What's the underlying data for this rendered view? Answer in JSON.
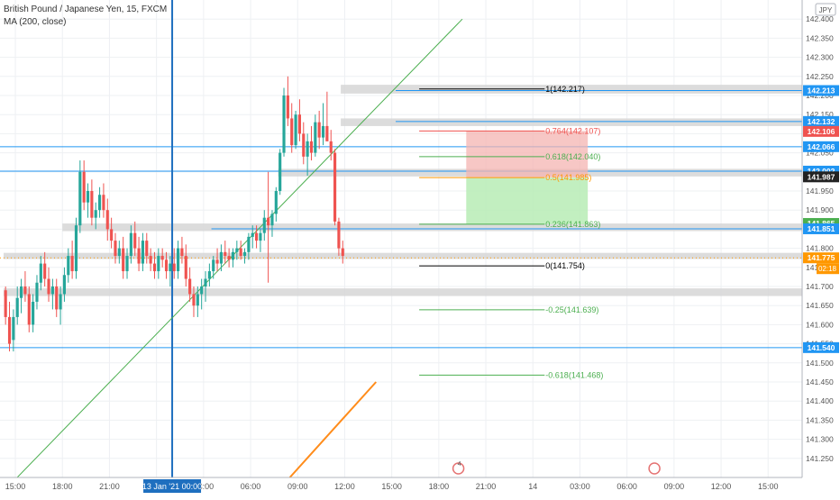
{
  "chart_data": {
    "type": "candlestick",
    "symbol_title": "British Pound / Japanese Yen, 15, FXCM",
    "indicator_label": "MA (200, close)",
    "currency_badge": "JPY",
    "ylim": [
      141.2,
      142.45
    ],
    "y_ticks": [
      {
        "label": "142.400",
        "v": 142.4
      },
      {
        "label": "142.350",
        "v": 142.35
      },
      {
        "label": "142.300",
        "v": 142.3
      },
      {
        "label": "142.250",
        "v": 142.25
      },
      {
        "label": "142.200",
        "v": 142.2
      },
      {
        "label": "142.150",
        "v": 142.15
      },
      {
        "label": "142.100",
        "v": 142.1
      },
      {
        "label": "142.050",
        "v": 142.05
      },
      {
        "label": "142.000",
        "v": 142.0
      },
      {
        "label": "141.950",
        "v": 141.95
      },
      {
        "label": "141.900",
        "v": 141.9
      },
      {
        "label": "141.850",
        "v": 141.85
      },
      {
        "label": "141.800",
        "v": 141.8
      },
      {
        "label": "141.750",
        "v": 141.75
      },
      {
        "label": "141.700",
        "v": 141.7
      },
      {
        "label": "141.650",
        "v": 141.65
      },
      {
        "label": "141.600",
        "v": 141.6
      },
      {
        "label": "141.550",
        "v": 141.55
      },
      {
        "label": "141.500",
        "v": 141.5
      },
      {
        "label": "141.450",
        "v": 141.45
      },
      {
        "label": "141.400",
        "v": 141.4
      },
      {
        "label": "141.350",
        "v": 141.35
      },
      {
        "label": "141.300",
        "v": 141.3
      },
      {
        "label": "141.250",
        "v": 141.25
      }
    ],
    "x_ticks": [
      {
        "label": "15:00",
        "bar": 3
      },
      {
        "label": "18:00",
        "bar": 15
      },
      {
        "label": "21:00",
        "bar": 27
      },
      {
        "label": "00:00",
        "bar": 39
      },
      {
        "label": "03:00",
        "bar": 51
      },
      {
        "label": "06:00",
        "bar": 63
      },
      {
        "label": "09:00",
        "bar": 75
      },
      {
        "label": "12:00",
        "bar": 87
      },
      {
        "label": "15:00",
        "bar": 99
      },
      {
        "label": "18:00",
        "bar": 111
      },
      {
        "label": "21:00",
        "bar": 123
      },
      {
        "label": "14",
        "bar": 135
      },
      {
        "label": "03:00",
        "bar": 147
      },
      {
        "label": "06:00",
        "bar": 159
      },
      {
        "label": "09:00",
        "bar": 171
      },
      {
        "label": "12:00",
        "bar": 183
      },
      {
        "label": "15:00",
        "bar": 195
      }
    ],
    "crosshair": {
      "date_label": "13 Jan '21",
      "bar": 43
    },
    "bars": [
      [
        141.69,
        141.7,
        141.6,
        141.62
      ],
      [
        141.62,
        141.66,
        141.53,
        141.55
      ],
      [
        141.56,
        141.64,
        141.53,
        141.62
      ],
      [
        141.62,
        141.7,
        141.6,
        141.67
      ],
      [
        141.67,
        141.72,
        141.63,
        141.7
      ],
      [
        141.7,
        141.74,
        141.66,
        141.68
      ],
      [
        141.68,
        141.7,
        141.58,
        141.6
      ],
      [
        141.6,
        141.68,
        141.58,
        141.66
      ],
      [
        141.66,
        141.73,
        141.64,
        141.71
      ],
      [
        141.71,
        141.78,
        141.69,
        141.76
      ],
      [
        141.76,
        141.79,
        141.7,
        141.72
      ],
      [
        141.72,
        141.75,
        141.66,
        141.68
      ],
      [
        141.68,
        141.72,
        141.64,
        141.7
      ],
      [
        141.7,
        141.72,
        141.62,
        141.64
      ],
      [
        141.64,
        141.7,
        141.6,
        141.68
      ],
      [
        141.68,
        141.75,
        141.66,
        141.73
      ],
      [
        141.73,
        141.8,
        141.71,
        141.78
      ],
      [
        141.78,
        141.82,
        141.72,
        141.74
      ],
      [
        141.74,
        141.88,
        141.72,
        141.86
      ],
      [
        141.86,
        142.03,
        141.84,
        142.0
      ],
      [
        142.0,
        142.03,
        141.9,
        141.92
      ],
      [
        141.92,
        141.97,
        141.88,
        141.95
      ],
      [
        141.95,
        141.98,
        141.86,
        141.88
      ],
      [
        141.88,
        141.92,
        141.85,
        141.9
      ],
      [
        141.9,
        141.96,
        141.88,
        141.94
      ],
      [
        141.94,
        141.97,
        141.88,
        141.9
      ],
      [
        141.9,
        141.93,
        141.82,
        141.85
      ],
      [
        141.85,
        141.88,
        141.8,
        141.82
      ],
      [
        141.82,
        141.84,
        141.76,
        141.78
      ],
      [
        141.78,
        141.82,
        141.76,
        141.8
      ],
      [
        141.8,
        141.83,
        141.72,
        141.74
      ],
      [
        141.74,
        141.8,
        141.72,
        141.78
      ],
      [
        141.78,
        141.86,
        141.76,
        141.84
      ],
      [
        141.84,
        141.87,
        141.78,
        141.8
      ],
      [
        141.8,
        141.83,
        141.74,
        141.76
      ],
      [
        141.76,
        141.84,
        141.74,
        141.82
      ],
      [
        141.82,
        141.84,
        141.76,
        141.78
      ],
      [
        141.78,
        141.8,
        141.74,
        141.76
      ],
      [
        141.76,
        141.79,
        141.72,
        141.74
      ],
      [
        141.74,
        141.8,
        141.72,
        141.78
      ],
      [
        141.78,
        141.8,
        141.75,
        141.77
      ],
      [
        141.77,
        141.79,
        141.72,
        141.74
      ],
      [
        141.74,
        141.78,
        141.7,
        141.76
      ],
      [
        141.76,
        141.8,
        141.72,
        141.74
      ],
      [
        141.74,
        141.82,
        141.72,
        141.8
      ],
      [
        141.8,
        141.83,
        141.76,
        141.78
      ],
      [
        141.78,
        141.81,
        141.7,
        141.72
      ],
      [
        141.72,
        141.75,
        141.66,
        141.68
      ],
      [
        141.68,
        141.7,
        141.62,
        141.65
      ],
      [
        141.65,
        141.7,
        141.62,
        141.68
      ],
      [
        141.68,
        141.72,
        141.64,
        141.7
      ],
      [
        141.7,
        141.74,
        141.66,
        141.72
      ],
      [
        141.72,
        141.76,
        141.7,
        141.74
      ],
      [
        141.74,
        141.78,
        141.72,
        141.77
      ],
      [
        141.77,
        141.8,
        141.74,
        141.76
      ],
      [
        141.76,
        141.81,
        141.74,
        141.79
      ],
      [
        141.79,
        141.82,
        141.76,
        141.78
      ],
      [
        141.78,
        141.8,
        141.75,
        141.77
      ],
      [
        141.77,
        141.8,
        141.75,
        141.79
      ],
      [
        141.79,
        141.82,
        141.77,
        141.8
      ],
      [
        141.8,
        141.82,
        141.77,
        141.78
      ],
      [
        141.78,
        141.8,
        141.76,
        141.79
      ],
      [
        141.79,
        141.84,
        141.77,
        141.83
      ],
      [
        141.83,
        141.86,
        141.8,
        141.84
      ],
      [
        141.84,
        141.86,
        141.8,
        141.82
      ],
      [
        141.82,
        141.85,
        141.79,
        141.84
      ],
      [
        141.84,
        141.9,
        141.82,
        141.88
      ],
      [
        141.88,
        142.0,
        141.71,
        141.86
      ],
      [
        141.86,
        141.9,
        141.83,
        141.89
      ],
      [
        141.89,
        141.96,
        141.87,
        141.95
      ],
      [
        141.95,
        142.06,
        141.94,
        142.05
      ],
      [
        142.05,
        142.22,
        142.04,
        142.2
      ],
      [
        142.2,
        142.25,
        142.12,
        142.14
      ],
      [
        142.14,
        142.18,
        142.05,
        142.07
      ],
      [
        142.07,
        142.16,
        142.06,
        142.15
      ],
      [
        142.15,
        142.19,
        142.08,
        142.1
      ],
      [
        142.1,
        142.13,
        142.02,
        142.04
      ],
      [
        142.04,
        142.1,
        141.99,
        142.08
      ],
      [
        142.08,
        142.12,
        142.03,
        142.05
      ],
      [
        142.05,
        142.15,
        142.04,
        142.13
      ],
      [
        142.13,
        142.16,
        142.06,
        142.09
      ],
      [
        142.09,
        142.18,
        142.07,
        142.12
      ],
      [
        142.12,
        142.21,
        142.1,
        142.08
      ],
      [
        142.08,
        142.11,
        142.03,
        142.05
      ],
      [
        142.05,
        142.06,
        141.86,
        141.87
      ],
      [
        141.87,
        141.88,
        141.78,
        141.8
      ],
      [
        141.8,
        141.82,
        141.76,
        141.78
      ]
    ],
    "horizontal_levels": [
      {
        "value": 142.213,
        "label": "142.213",
        "color": "#2196f3"
      },
      {
        "value": 142.132,
        "label": "142.132",
        "color": "#2196f3"
      },
      {
        "value": 142.106,
        "label": "142.106",
        "color": "#ef5350"
      },
      {
        "value": 142.066,
        "label": "142.066",
        "color": "#2196f3"
      },
      {
        "value": 142.002,
        "label": "142.002",
        "color": "#2196f3"
      },
      {
        "value": 141.987,
        "label": "141.987",
        "color": "#222222"
      },
      {
        "value": 141.865,
        "label": "141.865",
        "color": "#4caf50"
      },
      {
        "value": 141.851,
        "label": "141.851",
        "color": "#2196f3"
      },
      {
        "value": 141.775,
        "label": "141.775",
        "color": "#ff9800"
      },
      {
        "value": 141.54,
        "label": "141.540",
        "color": "#2196f3"
      }
    ],
    "countdown": "02:18",
    "zones": [
      {
        "from": 142.205,
        "to": 142.228
      },
      {
        "from": 142.12,
        "to": 142.14
      },
      {
        "from": 141.988,
        "to": 142.008
      },
      {
        "from": 141.845,
        "to": 141.865
      },
      {
        "from": 141.772,
        "to": 141.788
      },
      {
        "from": 141.675,
        "to": 141.695
      }
    ],
    "fibonacci": [
      {
        "level": "1",
        "value": 142.217,
        "label": "1(142.217)",
        "color": "#000000"
      },
      {
        "level": "0.764",
        "value": 142.107,
        "label": "0.764(142.107)",
        "color": "#ef5350"
      },
      {
        "level": "0.618",
        "value": 142.04,
        "label": "0.618(142.040)",
        "color": "#4caf50"
      },
      {
        "level": "0.5",
        "value": 141.985,
        "label": "0.5(141.985)",
        "color": "#ff9800"
      },
      {
        "level": "0.236",
        "value": 141.863,
        "label": "0.236(141.863)",
        "color": "#4caf50"
      },
      {
        "level": "0",
        "value": 141.754,
        "label": "0(141.754)",
        "color": "#000000"
      },
      {
        "level": "-0.25",
        "value": 141.639,
        "label": "-0.25(141.639)",
        "color": "#4caf50"
      },
      {
        "level": "-0.618",
        "value": 141.468,
        "label": "-0.618(141.468)",
        "color": "#4caf50"
      }
    ],
    "position": {
      "entry": 141.985,
      "stop": 142.107,
      "target": 141.863
    },
    "trendline": {
      "from": [
        -6,
        141.1
      ],
      "to": [
        117,
        142.4
      ]
    },
    "ma_line": [
      [
        73,
        141.2
      ],
      [
        95,
        141.45
      ]
    ],
    "marker_badges": [
      {
        "label": "4",
        "bar": 116
      },
      {
        "label": "",
        "bar": 166
      }
    ],
    "colors": {
      "up": "#26a69a",
      "down": "#ef5350",
      "wick": "#555555",
      "grid": "#eef0f3"
    }
  }
}
